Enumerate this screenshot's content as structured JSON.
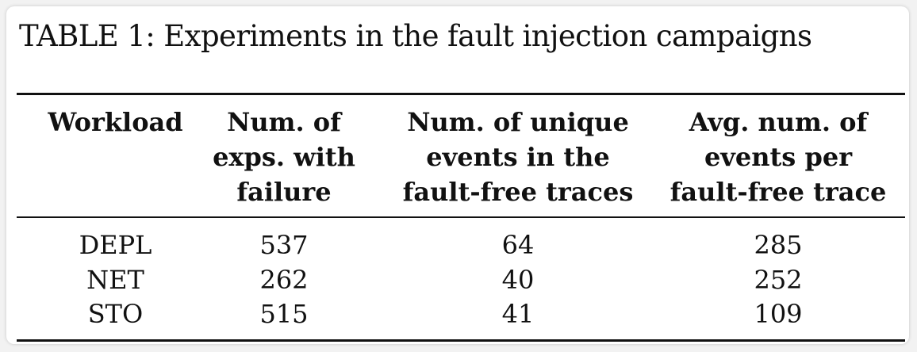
{
  "table": {
    "caption": "TABLE 1: Experiments in the fault injection campaigns",
    "headers": [
      [
        "Workload"
      ],
      [
        "Num. of",
        "exps. with",
        "failure"
      ],
      [
        "Num. of unique",
        "events in the",
        "fault-free traces"
      ],
      [
        "Avg. num. of",
        "events per",
        "fault-free trace"
      ]
    ],
    "rows": [
      [
        "DEPL",
        "537",
        "64",
        "285"
      ],
      [
        "NET",
        "262",
        "40",
        "252"
      ],
      [
        "STO",
        "515",
        "41",
        "109"
      ]
    ]
  }
}
